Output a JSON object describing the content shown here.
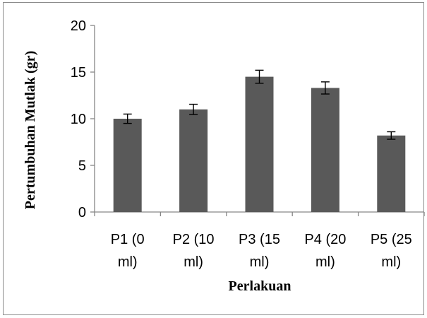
{
  "chart_data": {
    "type": "bar",
    "title": "",
    "xlabel": "Perlakuan",
    "ylabel": "Pertumbuhan Mutlak (gr)",
    "ylim": [
      0,
      20
    ],
    "yticks": [
      "0",
      "5",
      "10",
      "15",
      "20"
    ],
    "grid": false,
    "legend": "none",
    "bar_color": "#595959",
    "categories": [
      {
        "line1": "P1 (0",
        "line2": "ml)"
      },
      {
        "line1": "P2 (10",
        "line2": "ml)"
      },
      {
        "line1": "P3 (15",
        "line2": "ml)"
      },
      {
        "line1": "P4 (20",
        "line2": "ml)"
      },
      {
        "line1": "P5 (25",
        "line2": "ml)"
      }
    ],
    "values": [
      10.0,
      11.0,
      14.5,
      13.3,
      8.2
    ],
    "error": [
      0.5,
      0.55,
      0.7,
      0.65,
      0.4
    ]
  }
}
